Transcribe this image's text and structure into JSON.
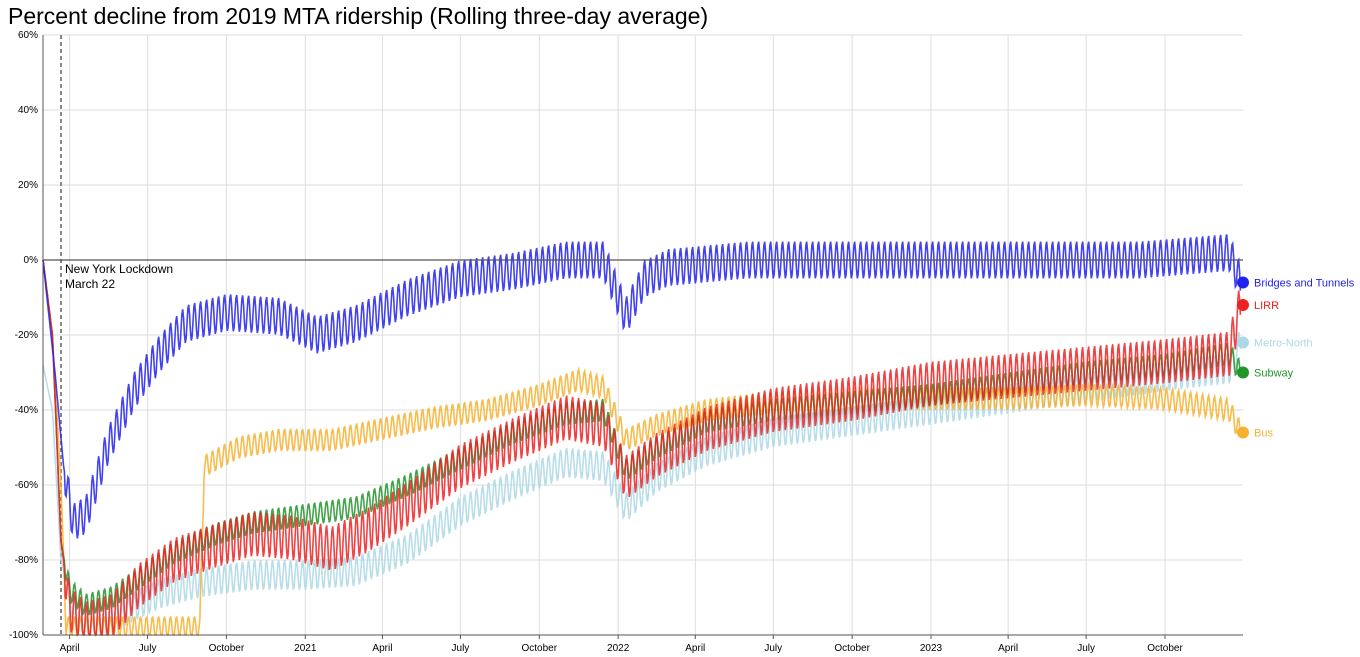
{
  "chart_data": {
    "type": "line",
    "title": "Percent decline from 2019 MTA ridership (Rolling three-day average)",
    "xlabel": "",
    "ylabel": "",
    "x_range": [
      "2020-03-01",
      "2023-12-31"
    ],
    "ylim": [
      -100,
      60
    ],
    "y_ticks": [
      60,
      40,
      20,
      0,
      -20,
      -40,
      -60,
      -80,
      -100
    ],
    "y_tick_labels": [
      "60%",
      "40%",
      "20%",
      "0%",
      "-20%",
      "-40%",
      "-60%",
      "-80%",
      "-100%"
    ],
    "x_ticks": [
      {
        "date": "2020-04-01",
        "label": "April"
      },
      {
        "date": "2020-07-01",
        "label": "July"
      },
      {
        "date": "2020-10-01",
        "label": "October"
      },
      {
        "date": "2021-01-01",
        "label": "2021"
      },
      {
        "date": "2021-04-01",
        "label": "April"
      },
      {
        "date": "2021-07-01",
        "label": "July"
      },
      {
        "date": "2021-10-01",
        "label": "October"
      },
      {
        "date": "2022-01-01",
        "label": "2022"
      },
      {
        "date": "2022-04-01",
        "label": "April"
      },
      {
        "date": "2022-07-01",
        "label": "July"
      },
      {
        "date": "2022-10-01",
        "label": "October"
      },
      {
        "date": "2023-01-01",
        "label": "2023"
      },
      {
        "date": "2023-04-01",
        "label": "April"
      },
      {
        "date": "2023-07-01",
        "label": "July"
      },
      {
        "date": "2023-10-01",
        "label": "October"
      }
    ],
    "grid": true,
    "legend_position": "right",
    "annotation": {
      "date": "2020-03-22",
      "line1": "New York Lockdown",
      "line2": "March 22"
    },
    "series": [
      {
        "name": "Bridges and Tunnels",
        "color": "#2222ee",
        "last": -6,
        "points": [
          [
            "2020-03-01",
            0
          ],
          [
            "2020-03-15",
            -30
          ],
          [
            "2020-03-25",
            -55
          ],
          [
            "2020-04-05",
            -70
          ],
          [
            "2020-04-20",
            -68
          ],
          [
            "2020-05-15",
            -50
          ],
          [
            "2020-06-15",
            -35
          ],
          [
            "2020-07-15",
            -25
          ],
          [
            "2020-08-15",
            -17
          ],
          [
            "2020-10-01",
            -14
          ],
          [
            "2020-12-01",
            -15
          ],
          [
            "2021-01-15",
            -20
          ],
          [
            "2021-03-01",
            -17
          ],
          [
            "2021-05-01",
            -10
          ],
          [
            "2021-07-01",
            -5
          ],
          [
            "2021-09-01",
            -3
          ],
          [
            "2021-11-01",
            0
          ],
          [
            "2021-12-15",
            0
          ],
          [
            "2022-01-10",
            -15
          ],
          [
            "2022-02-01",
            -5
          ],
          [
            "2022-03-01",
            -2
          ],
          [
            "2022-06-01",
            0
          ],
          [
            "2022-09-01",
            0
          ],
          [
            "2022-12-01",
            0
          ],
          [
            "2023-03-01",
            0
          ],
          [
            "2023-06-01",
            0
          ],
          [
            "2023-09-01",
            0
          ],
          [
            "2023-12-15",
            2
          ],
          [
            "2023-12-28",
            -6
          ]
        ]
      },
      {
        "name": "LIRR",
        "color": "#ee2222",
        "last": -12,
        "points": [
          [
            "2020-03-01",
            0
          ],
          [
            "2020-03-12",
            -20
          ],
          [
            "2020-03-22",
            -75
          ],
          [
            "2020-04-01",
            -93
          ],
          [
            "2020-04-20",
            -97
          ],
          [
            "2020-05-20",
            -95
          ],
          [
            "2020-06-20",
            -87
          ],
          [
            "2020-08-01",
            -80
          ],
          [
            "2020-09-20",
            -76
          ],
          [
            "2020-11-01",
            -73
          ],
          [
            "2020-12-15",
            -74
          ],
          [
            "2021-02-01",
            -77
          ],
          [
            "2021-03-15",
            -72
          ],
          [
            "2021-05-01",
            -65
          ],
          [
            "2021-07-01",
            -55
          ],
          [
            "2021-09-01",
            -48
          ],
          [
            "2021-11-01",
            -42
          ],
          [
            "2021-12-15",
            -44
          ],
          [
            "2022-01-10",
            -58
          ],
          [
            "2022-02-15",
            -52
          ],
          [
            "2022-04-15",
            -45
          ],
          [
            "2022-07-01",
            -40
          ],
          [
            "2022-10-01",
            -37
          ],
          [
            "2023-01-01",
            -33
          ],
          [
            "2023-04-01",
            -31
          ],
          [
            "2023-07-01",
            -29
          ],
          [
            "2023-10-01",
            -27
          ],
          [
            "2023-12-15",
            -25
          ],
          [
            "2023-12-28",
            -12
          ]
        ]
      },
      {
        "name": "Metro-North",
        "color": "#add8e6",
        "last": -22,
        "points": [
          [
            "2020-03-01",
            -28
          ],
          [
            "2020-03-12",
            -40
          ],
          [
            "2020-03-22",
            -80
          ],
          [
            "2020-04-05",
            -93
          ],
          [
            "2020-04-25",
            -97
          ],
          [
            "2020-06-01",
            -94
          ],
          [
            "2020-07-15",
            -89
          ],
          [
            "2020-09-01",
            -86
          ],
          [
            "2020-11-01",
            -84
          ],
          [
            "2021-01-01",
            -84
          ],
          [
            "2021-03-01",
            -83
          ],
          [
            "2021-05-01",
            -77
          ],
          [
            "2021-07-01",
            -67
          ],
          [
            "2021-09-01",
            -60
          ],
          [
            "2021-11-01",
            -54
          ],
          [
            "2021-12-15",
            -55
          ],
          [
            "2022-01-10",
            -66
          ],
          [
            "2022-02-15",
            -58
          ],
          [
            "2022-04-15",
            -51
          ],
          [
            "2022-07-01",
            -46
          ],
          [
            "2022-10-01",
            -43
          ],
          [
            "2023-01-01",
            -40
          ],
          [
            "2023-04-01",
            -37
          ],
          [
            "2023-07-01",
            -34
          ],
          [
            "2023-10-01",
            -31
          ],
          [
            "2023-12-15",
            -29
          ],
          [
            "2023-12-28",
            -22
          ]
        ]
      },
      {
        "name": "Subway",
        "color": "#22942a",
        "last": -30,
        "points": [
          [
            "2020-03-01",
            0
          ],
          [
            "2020-03-12",
            -20
          ],
          [
            "2020-03-22",
            -75
          ],
          [
            "2020-04-01",
            -88
          ],
          [
            "2020-04-20",
            -92
          ],
          [
            "2020-05-20",
            -90
          ],
          [
            "2020-06-20",
            -85
          ],
          [
            "2020-08-01",
            -78
          ],
          [
            "2020-09-20",
            -73
          ],
          [
            "2020-11-01",
            -70
          ],
          [
            "2021-01-01",
            -68
          ],
          [
            "2021-03-01",
            -66
          ],
          [
            "2021-05-01",
            -60
          ],
          [
            "2021-07-01",
            -53
          ],
          [
            "2021-09-01",
            -46
          ],
          [
            "2021-11-01",
            -41
          ],
          [
            "2021-12-15",
            -40
          ],
          [
            "2022-01-10",
            -56
          ],
          [
            "2022-02-15",
            -50
          ],
          [
            "2022-04-15",
            -43
          ],
          [
            "2022-07-01",
            -40
          ],
          [
            "2022-10-01",
            -38
          ],
          [
            "2023-01-01",
            -36
          ],
          [
            "2023-04-01",
            -33
          ],
          [
            "2023-07-01",
            -30
          ],
          [
            "2023-10-01",
            -28
          ],
          [
            "2023-12-15",
            -25
          ],
          [
            "2023-12-28",
            -30
          ]
        ]
      },
      {
        "name": "Bus",
        "color": "#f7b030",
        "last": -46,
        "points": [
          [
            "2020-03-01",
            0
          ],
          [
            "2020-03-12",
            -20
          ],
          [
            "2020-03-22",
            -60
          ],
          [
            "2020-03-28",
            -98
          ],
          [
            "2020-08-31",
            -98
          ],
          [
            "2020-09-05",
            -55
          ],
          [
            "2020-10-15",
            -50
          ],
          [
            "2020-12-01",
            -48
          ],
          [
            "2021-02-01",
            -48
          ],
          [
            "2021-04-01",
            -45
          ],
          [
            "2021-06-01",
            -42
          ],
          [
            "2021-08-01",
            -40
          ],
          [
            "2021-10-01",
            -36
          ],
          [
            "2021-11-15",
            -32
          ],
          [
            "2021-12-15",
            -34
          ],
          [
            "2022-01-10",
            -48
          ],
          [
            "2022-02-15",
            -44
          ],
          [
            "2022-04-15",
            -40
          ],
          [
            "2022-07-01",
            -38
          ],
          [
            "2022-10-01",
            -37
          ],
          [
            "2023-01-01",
            -37
          ],
          [
            "2023-04-01",
            -37
          ],
          [
            "2023-07-01",
            -36
          ],
          [
            "2023-10-01",
            -37
          ],
          [
            "2023-12-15",
            -40
          ],
          [
            "2023-12-28",
            -46
          ]
        ]
      }
    ]
  }
}
